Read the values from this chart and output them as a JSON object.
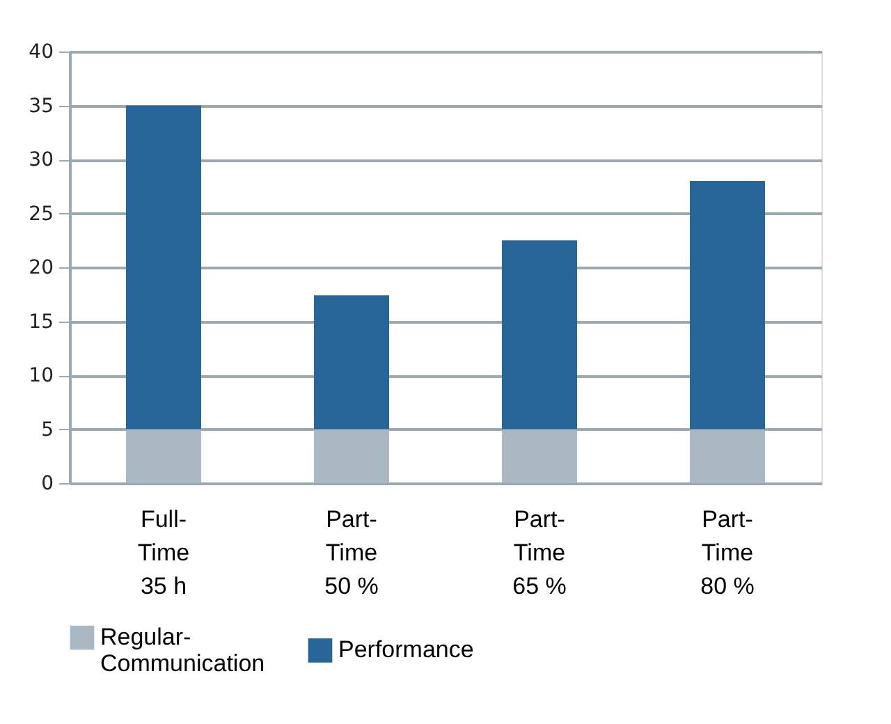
{
  "chart_data": {
    "type": "bar",
    "stacked": true,
    "categories": [
      "Full-\nTime\n35 h",
      "Part-\nTime\n50 %",
      "Part-\nTime\n65 %",
      "Part-\nTime\n80 %"
    ],
    "series": [
      {
        "name": "Regular-\nCommunication",
        "color": "#a9b8c2",
        "values": [
          5,
          5,
          5,
          5
        ]
      },
      {
        "name": "Performance",
        "color": "#286699",
        "values": [
          30,
          12.4,
          17.5,
          23
        ]
      }
    ],
    "ylim": [
      0,
      40
    ],
    "yticks": [
      0,
      5,
      10,
      15,
      20,
      25,
      30,
      35,
      40
    ],
    "grid": "y",
    "legend": "bottom left"
  }
}
